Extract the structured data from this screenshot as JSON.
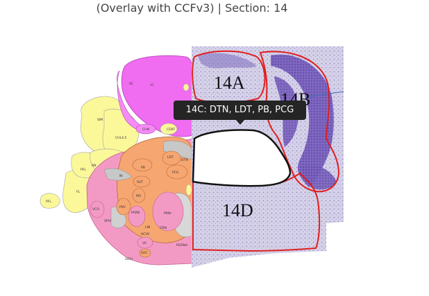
{
  "figure": {
    "title": "(Overlay with CCFv3) | Section: 14",
    "tooltip": "14C: DTN, LDT, PB, PCG",
    "regions": [
      {
        "id": "14A",
        "label": "14A"
      },
      {
        "id": "14B",
        "label": "14B"
      },
      {
        "id": "14C",
        "label": "14C"
      },
      {
        "id": "14D",
        "label": "14D"
      }
    ]
  },
  "atlas": {
    "labels": [
      "SC",
      "IC",
      "CUN",
      "SIM",
      "CUL4,5",
      "CENT",
      "AN",
      "PFL",
      "FL",
      "PFL",
      "VCO",
      "PB",
      "LDT",
      "DTN",
      "PCG",
      "NI",
      "SUT",
      "MV",
      "PSV",
      "PARN",
      "PRNr",
      "SPVI",
      "GRN",
      "SOC",
      "VII",
      "ACVII",
      "SOCl",
      "PGRNd",
      "LIN"
    ]
  },
  "colors": {
    "outline": "#e01e1e",
    "tooltip_bg": "#252525",
    "magenta": "#f06cf0",
    "yellow": "#fbf89a",
    "orange": "#f6a671",
    "pink": "#f39ac4",
    "gray": "#c8c8c8",
    "tissue": "#d3cfe6",
    "stain": "#6a4fb3"
  }
}
